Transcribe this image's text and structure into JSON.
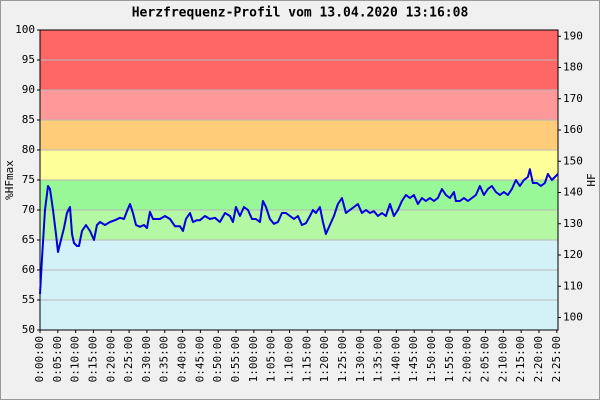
{
  "chart_data": {
    "type": "line",
    "title": "Herzfrequenz-Profil vom 13.04.2020 13:16:08",
    "ylabel": "%HFmax",
    "y2label": "HF",
    "color": "#0000dd",
    "grid": true,
    "xlim": [
      0,
      8720
    ],
    "ylim": [
      50,
      100
    ],
    "y2lim": [
      96,
      192
    ],
    "yticks": [
      50,
      55,
      60,
      65,
      70,
      75,
      80,
      85,
      90,
      95,
      100
    ],
    "y2ticks": [
      100,
      110,
      120,
      130,
      140,
      150,
      160,
      170,
      180,
      190
    ],
    "zones": [
      {
        "from": 50,
        "to": 65,
        "color": "#d2f2f8"
      },
      {
        "from": 65,
        "to": 70,
        "color": "#b4f8a4"
      },
      {
        "from": 70,
        "to": 75,
        "color": "#98f898"
      },
      {
        "from": 75,
        "to": 80,
        "color": "#ffff99"
      },
      {
        "from": 80,
        "to": 85,
        "color": "#ffcc7a"
      },
      {
        "from": 85,
        "to": 90,
        "color": "#ff9999"
      },
      {
        "from": 90,
        "to": 100,
        "color": "#ff6666"
      }
    ],
    "xticks": [
      {
        "value": 0,
        "label": "0:00:00"
      },
      {
        "value": 300,
        "label": "0:05:00"
      },
      {
        "value": 600,
        "label": "0:10:00"
      },
      {
        "value": 900,
        "label": "0:15:00"
      },
      {
        "value": 1200,
        "label": "0:20:00"
      },
      {
        "value": 1500,
        "label": "0:25:00"
      },
      {
        "value": 1800,
        "label": "0:30:00"
      },
      {
        "value": 2100,
        "label": "0:35:00"
      },
      {
        "value": 2400,
        "label": "0:40:00"
      },
      {
        "value": 2700,
        "label": "0:45:00"
      },
      {
        "value": 3000,
        "label": "0:50:00"
      },
      {
        "value": 3300,
        "label": "0:55:00"
      },
      {
        "value": 3600,
        "label": "1:00:00"
      },
      {
        "value": 3900,
        "label": "1:05:00"
      },
      {
        "value": 4200,
        "label": "1:10:00"
      },
      {
        "value": 4500,
        "label": "1:15:00"
      },
      {
        "value": 4800,
        "label": "1:20:00"
      },
      {
        "value": 5100,
        "label": "1:25:00"
      },
      {
        "value": 5400,
        "label": "1:30:00"
      },
      {
        "value": 5700,
        "label": "1:35:00"
      },
      {
        "value": 6000,
        "label": "1:40:00"
      },
      {
        "value": 6300,
        "label": "1:45:00"
      },
      {
        "value": 6600,
        "label": "1:50:00"
      },
      {
        "value": 6900,
        "label": "1:55:00"
      },
      {
        "value": 7200,
        "label": "2:00:00"
      },
      {
        "value": 7500,
        "label": "2:05:00"
      },
      {
        "value": 7800,
        "label": "2:10:00"
      },
      {
        "value": 8100,
        "label": "2:15:00"
      },
      {
        "value": 8400,
        "label": "2:20:00"
      },
      {
        "value": 8700,
        "label": "2:25:00"
      }
    ],
    "x": [
      0,
      34,
      84,
      135,
      168,
      219,
      269,
      303,
      353,
      404,
      454,
      505,
      539,
      572,
      623,
      656,
      707,
      774,
      842,
      909,
      959,
      1010,
      1094,
      1178,
      1262,
      1346,
      1414,
      1464,
      1515,
      1565,
      1616,
      1683,
      1750,
      1801,
      1851,
      1902,
      2020,
      2104,
      2188,
      2272,
      2356,
      2407,
      2457,
      2525,
      2575,
      2642,
      2693,
      2777,
      2861,
      2945,
      3029,
      3114,
      3198,
      3248,
      3299,
      3366,
      3433,
      3501,
      3568,
      3635,
      3703,
      3753,
      3804,
      3871,
      3938,
      4006,
      4073,
      4140,
      4208,
      4275,
      4342,
      4409,
      4477,
      4544,
      4595,
      4645,
      4712,
      4763,
      4813,
      4880,
      4948,
      5015,
      5083,
      5150,
      5217,
      5285,
      5352,
      5419,
      5487,
      5554,
      5621,
      5689,
      5756,
      5823,
      5891,
      5958,
      6025,
      6092,
      6160,
      6227,
      6294,
      6362,
      6429,
      6496,
      6564,
      6631,
      6698,
      6766,
      6833,
      6900,
      6968,
      7001,
      7069,
      7136,
      7203,
      7271,
      7338,
      7405,
      7473,
      7540,
      7607,
      7674,
      7742,
      7809,
      7876,
      7944,
      8011,
      8078,
      8146,
      8213,
      8247,
      8297,
      8365,
      8432,
      8499,
      8550,
      8617,
      8668,
      8718
    ],
    "values": [
      56,
      62,
      70,
      74,
      73.5,
      70,
      66,
      63,
      65,
      67,
      69.5,
      70.5,
      66,
      64.5,
      64,
      64,
      66.5,
      67.5,
      66.5,
      65,
      67.5,
      68,
      67.5,
      68,
      68.3,
      68.7,
      68.5,
      69.8,
      71,
      69.5,
      67.5,
      67.2,
      67.5,
      67,
      69.7,
      68.5,
      68.5,
      69,
      68.5,
      67.3,
      67.3,
      66.5,
      68.5,
      69.5,
      68,
      68.3,
      68.3,
      69,
      68.5,
      68.7,
      68,
      69.5,
      69,
      68,
      70.5,
      69,
      70.5,
      70,
      68.5,
      68.5,
      68,
      71.5,
      70.5,
      68.5,
      67.7,
      68,
      69.5,
      69.5,
      69,
      68.5,
      69,
      67.5,
      67.8,
      69,
      70,
      69.5,
      70.5,
      68,
      66,
      67.5,
      69,
      71,
      72,
      69.5,
      70,
      70.5,
      71,
      69.5,
      70,
      69.5,
      69.8,
      69,
      69.5,
      69,
      71,
      69,
      70,
      71.5,
      72.5,
      72,
      72.5,
      71,
      72,
      71.5,
      72,
      71.5,
      72,
      73.5,
      72.5,
      72,
      73,
      71.5,
      71.5,
      72,
      71.5,
      72,
      72.5,
      74,
      72.5,
      73.5,
      74,
      73,
      72.5,
      73,
      72.5,
      73.5,
      75,
      74,
      75,
      75.5,
      76.8,
      74.5,
      74.5,
      74,
      74.5,
      76,
      75,
      75.5,
      76
    ]
  }
}
